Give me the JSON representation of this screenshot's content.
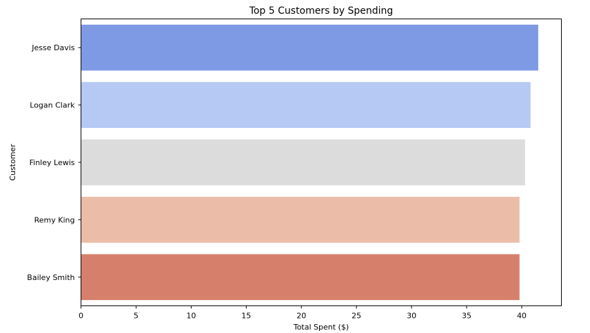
{
  "chart_data": {
    "type": "bar",
    "orientation": "horizontal",
    "title": "Top 5 Customers by Spending",
    "xlabel": "Total Spent ($)",
    "ylabel": "Customer",
    "categories": [
      "Jesse Davis",
      "Logan Clark",
      "Finley Lewis",
      "Remy King",
      "Bailey Smith"
    ],
    "values": [
      41.5,
      40.8,
      40.3,
      39.8,
      39.8
    ],
    "colors": [
      "#7f9ae5",
      "#b5c9f4",
      "#dcdcdc",
      "#ebbda8",
      "#d6806c"
    ],
    "xlim": [
      0,
      43.6
    ],
    "xticks": [
      0,
      5,
      10,
      15,
      20,
      25,
      30,
      35,
      40
    ],
    "grid": false,
    "legend": "none"
  }
}
